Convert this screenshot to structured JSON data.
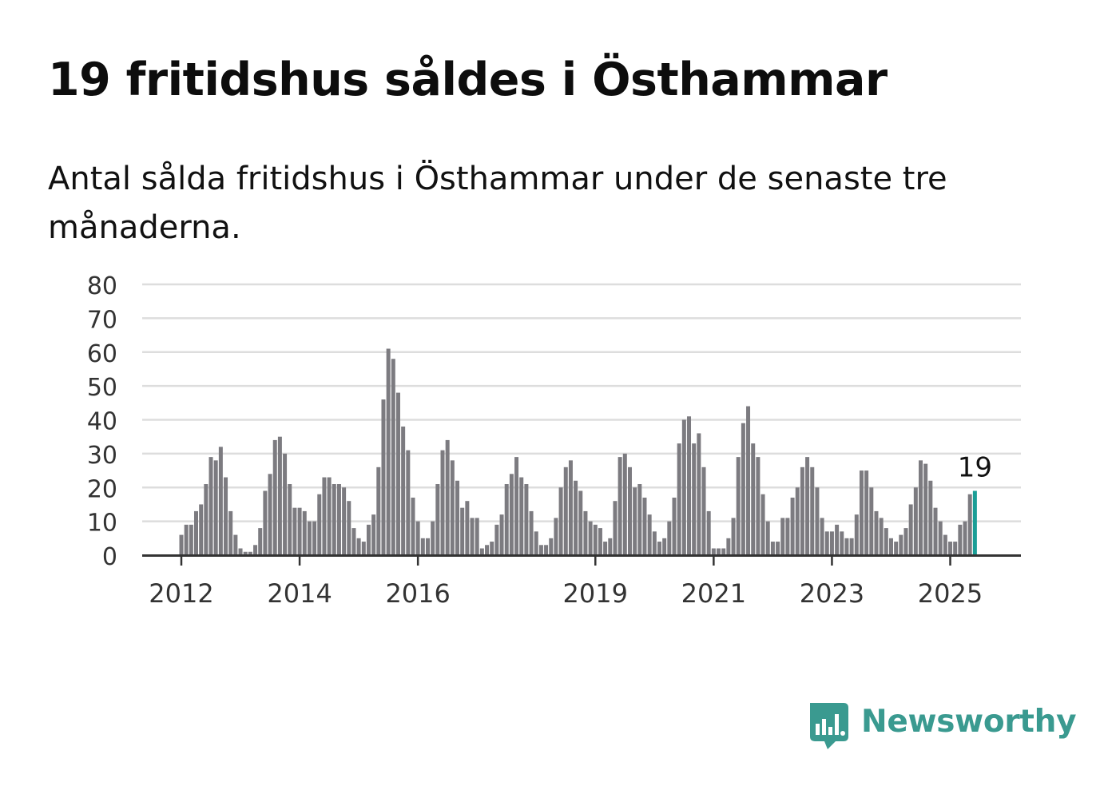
{
  "title": "19 fritidshus såldes i Östhammar",
  "subtitle": "Antal sålda fritidshus i Östhammar under de senaste tre månaderna.",
  "brand": {
    "name": "Newsworthy",
    "logo_icon": "bar-chart-speech-bubble-icon",
    "color": "#3a9a90"
  },
  "chart_data": {
    "type": "bar",
    "title": "",
    "xlabel": "",
    "ylabel": "",
    "ylim": [
      0,
      80
    ],
    "yticks": [
      0,
      10,
      20,
      30,
      40,
      50,
      60,
      70,
      80
    ],
    "grid": true,
    "xtick_labels": [
      {
        "label": "2012",
        "year": 2012
      },
      {
        "label": "2014",
        "year": 2014
      },
      {
        "label": "2016",
        "year": 2016
      },
      {
        "label": "2019",
        "year": 2019
      },
      {
        "label": "2021",
        "year": 2021
      },
      {
        "label": "2023",
        "year": 2023
      },
      {
        "label": "2025",
        "year": 2025
      }
    ],
    "series": [
      {
        "start": "2012-01",
        "frequency": "monthly",
        "color": "#7c7b80",
        "highlight_color": "#1a9e96",
        "values": [
          6,
          9,
          9,
          13,
          15,
          21,
          29,
          28,
          32,
          23,
          13,
          6,
          2,
          1,
          1,
          3,
          8,
          19,
          24,
          34,
          35,
          30,
          21,
          14,
          14,
          13,
          10,
          10,
          18,
          23,
          23,
          21,
          21,
          20,
          16,
          8,
          5,
          4,
          9,
          12,
          26,
          46,
          61,
          58,
          48,
          38,
          31,
          17,
          10,
          5,
          5,
          10,
          21,
          31,
          34,
          28,
          22,
          14,
          16,
          11,
          11,
          2,
          3,
          4,
          9,
          12,
          21,
          24,
          29,
          23,
          21,
          13,
          7,
          3,
          3,
          5,
          11,
          20,
          26,
          28,
          22,
          19,
          13,
          10,
          9,
          8,
          4,
          5,
          16,
          29,
          30,
          26,
          20,
          21,
          17,
          12,
          7,
          4,
          5,
          10,
          17,
          33,
          40,
          41,
          33,
          36,
          26,
          13,
          2,
          2,
          2,
          5,
          11,
          29,
          39,
          44,
          33,
          29,
          18,
          10,
          4,
          4,
          11,
          11,
          17,
          20,
          26,
          29,
          26,
          20,
          11,
          7,
          7,
          9,
          7,
          5,
          5,
          12,
          25,
          25,
          20,
          13,
          11,
          8,
          5,
          4,
          6,
          8,
          15,
          20,
          28,
          27,
          22,
          14,
          10,
          6,
          4,
          4,
          9,
          10,
          18,
          19
        ]
      }
    ],
    "annotations": [
      {
        "text": "19",
        "target": "last-bar"
      }
    ]
  }
}
